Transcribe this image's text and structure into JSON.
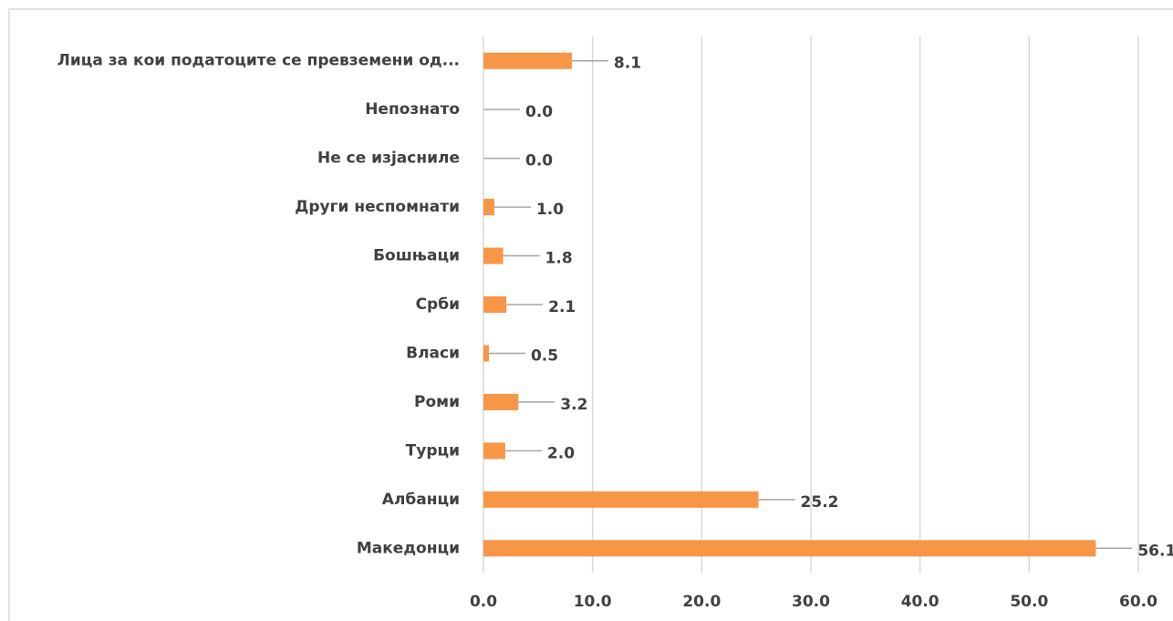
{
  "chart_data": {
    "type": "barh",
    "categories": [
      "Лица за кои податоците се превземени од...",
      "Непознато",
      "Не се изјасниле",
      "Други неспомнати",
      "Бошњаци",
      "Срби",
      "Власи",
      "Роми",
      "Турци",
      "Албанци",
      "Македонци"
    ],
    "values": [
      8.1,
      0.0,
      0.0,
      1.0,
      1.8,
      2.1,
      0.5,
      3.2,
      2.0,
      25.2,
      56.1
    ],
    "value_labels": [
      "8.1",
      "0.0",
      "0.0",
      "1.0",
      "1.8",
      "2.1",
      "0.5",
      "3.2",
      "2.0",
      "25.2",
      "56.1"
    ],
    "color": "#f79646",
    "xlim": [
      0,
      60
    ],
    "xticks": [
      {
        "value": 0,
        "label": "0.0"
      },
      {
        "value": 10,
        "label": "10.0"
      },
      {
        "value": 20,
        "label": "20.0"
      },
      {
        "value": 30,
        "label": "30.0"
      },
      {
        "value": 40,
        "label": "40.0"
      },
      {
        "value": 50,
        "label": "50.0"
      },
      {
        "value": 60,
        "label": "60.0"
      }
    ],
    "grid": true
  }
}
